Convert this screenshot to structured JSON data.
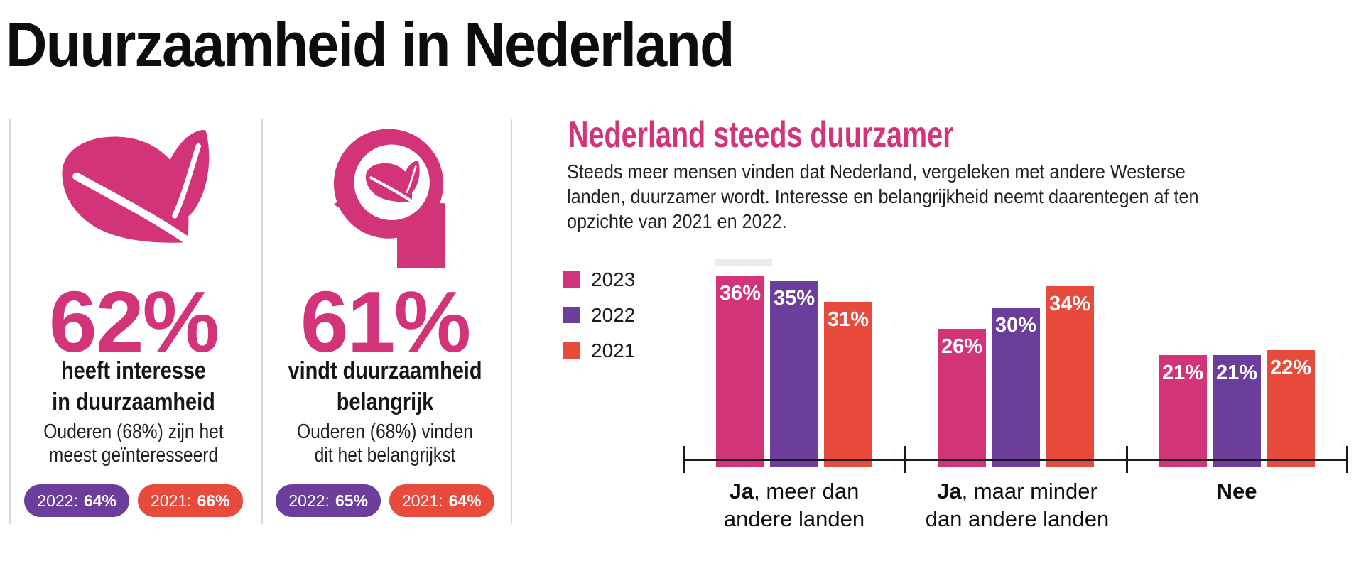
{
  "title": "Duurzaamheid in Nederland",
  "colors": {
    "pink": "#D23379",
    "purple": "#6B3E9B",
    "red": "#E84A3C",
    "ink": "#111111",
    "body_text": "#222222",
    "divider": "#D8D8D8",
    "ghost": "#EBEBEB",
    "axis": "#1A1A1A"
  },
  "stat_cards": [
    {
      "icon": "leaves-icon",
      "value": "62%",
      "title_line1": "heeft interesse",
      "title_line2": "in duurzaamheid",
      "sub_line1": "Ouderen (68%) zijn het",
      "sub_line2": "meest geïnteresseerd",
      "badges": [
        {
          "label": "2022:",
          "value": "64%",
          "color_key": "purple"
        },
        {
          "label": "2021:",
          "value": "66%",
          "color_key": "red"
        }
      ]
    },
    {
      "icon": "head-leaf-icon",
      "value": "61%",
      "title_line1": "vindt duurzaamheid",
      "title_line2": "belangrijk",
      "sub_line1": "Ouderen (68%) vinden",
      "sub_line2": "dit het belangrijkst",
      "badges": [
        {
          "label": "2022:",
          "value": "65%",
          "color_key": "purple"
        },
        {
          "label": "2021:",
          "value": "64%",
          "color_key": "red"
        }
      ]
    }
  ],
  "section": {
    "heading": "Nederland steeds duurzamer",
    "body_lines": [
      "Steeds meer mensen vinden dat Nederland, vergeleken met andere Westerse",
      "landen, duurzamer wordt. Interesse en belangrijkheid neemt daarentegen af ten",
      "opzichte van 2021 en 2022."
    ]
  },
  "chart_data": {
    "type": "bar",
    "unit": "%",
    "title": "Nederland steeds duurzamer",
    "categories": [
      "Ja, meer dan andere landen",
      "Ja, maar minder dan andere landen",
      "Nee"
    ],
    "series": [
      {
        "name": "2023",
        "color_key": "pink",
        "values": [
          36,
          26,
          21
        ]
      },
      {
        "name": "2022",
        "color_key": "purple",
        "values": [
          35,
          30,
          21
        ]
      },
      {
        "name": "2021",
        "color_key": "red",
        "values": [
          31,
          34,
          22
        ]
      }
    ],
    "ylim": [
      0,
      40
    ],
    "grid": false,
    "legend_position": "left",
    "value_labels": "inside-top",
    "pixels_per_percent": 7.5,
    "category_labels": [
      {
        "bold": "Ja",
        "rest": ", meer dan",
        "line2": "andere landen"
      },
      {
        "bold": "Ja",
        "rest": ", maar minder",
        "line2": "dan andere landen"
      },
      {
        "bold": "Nee",
        "rest": "",
        "line2": ""
      }
    ]
  }
}
